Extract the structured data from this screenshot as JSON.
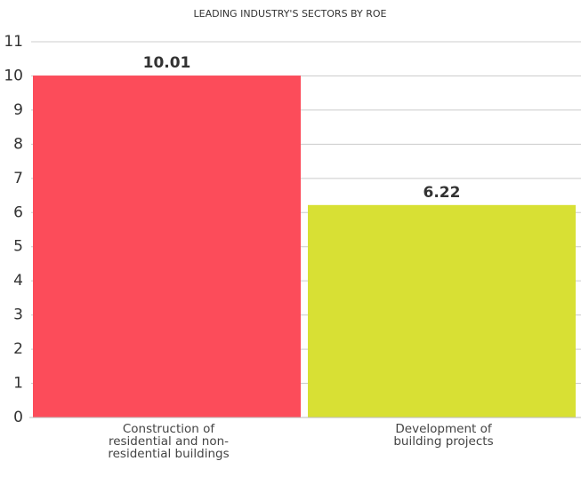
{
  "chart_data": {
    "type": "bar",
    "title": "LEADING INDUSTRY'S SECTORS BY ROE",
    "categories": [
      "Construction of residential and non-residential buildings",
      "Development of building projects"
    ],
    "values": [
      10.01,
      6.22
    ],
    "colors": [
      "#fc4c5a",
      "#d8e034"
    ],
    "ylim": [
      0,
      11
    ],
    "yticks": [
      0,
      1,
      2,
      3,
      4,
      5,
      6,
      7,
      8,
      9,
      10,
      11
    ],
    "grid": true
  }
}
